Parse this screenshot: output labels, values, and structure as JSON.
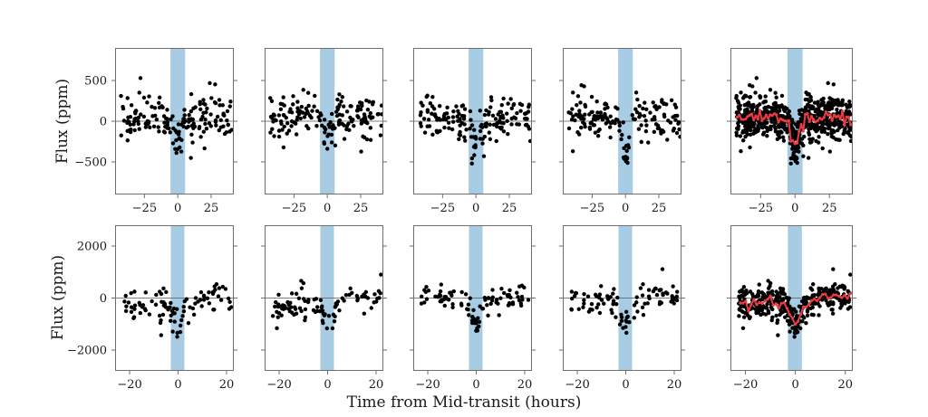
{
  "chart_data": {
    "type": "scatter",
    "title": "",
    "xlabel": "Time from Mid-transit (hours)",
    "ylabel": "Flux (ppm)",
    "layout": {
      "rows": 2,
      "cols": 5,
      "grid": false,
      "legend": "none",
      "note": "columns 1-4 are individual light-curve segments; column 5 is all points combined with a red running-mean curve; light blue vertical band marks the transit window around mid-transit"
    },
    "colors": {
      "point": "#000000",
      "red_curve": "#ee3b43",
      "band": "#a8cce4",
      "spine": "#6e6e6e",
      "zero_line": "#555555",
      "text": "#1a1a1a"
    },
    "rows": [
      {
        "ylim": [
          -900,
          900
        ],
        "yticks": [
          {
            "v": 500,
            "label": "500"
          },
          {
            "v": 0,
            "label": "0"
          },
          {
            "v": -500,
            "label": "−500"
          }
        ],
        "xlim": [
          -47,
          42
        ],
        "xticks": [
          {
            "v": -25,
            "label": "−25"
          },
          {
            "v": 0,
            "label": "0"
          },
          {
            "v": 25,
            "label": "25"
          }
        ],
        "band": {
          "x0": -5.5,
          "x1": 5.5
        },
        "bin_width": 1.5,
        "panels": [
          {
            "seed": 11,
            "n": 165,
            "x_range": [
              -43,
              41
            ],
            "base": 30,
            "trend": 0.8,
            "sigma": 128,
            "dip_depth": -260,
            "dip_sd": 3.5,
            "outliers": [
              [
                -28,
                530
              ],
              [
                24,
                468
              ],
              [
                28,
                452
              ],
              [
                -1,
                -390
              ]
            ]
          },
          {
            "seed": 22,
            "n": 170,
            "x_range": [
              -43,
              41
            ],
            "base": 55,
            "trend": -0.4,
            "sigma": 125,
            "dip_depth": -200,
            "dip_sd": 3.2,
            "outliers": [
              [
                -18,
                385
              ],
              [
                9,
                330
              ]
            ]
          },
          {
            "seed": 33,
            "n": 165,
            "x_range": [
              -43,
              41
            ],
            "base": 20,
            "trend": 0.3,
            "sigma": 125,
            "dip_depth": -280,
            "dip_sd": 3.2,
            "outliers": [
              [
                -3,
                -520
              ],
              [
                6,
                -430
              ],
              [
                -37,
                300
              ]
            ]
          },
          {
            "seed": 44,
            "n": 165,
            "x_range": [
              -43,
              41
            ],
            "base": 30,
            "trend": 0.0,
            "sigma": 125,
            "dip_depth": -380,
            "dip_sd": 3.0,
            "outliers": [
              [
                -33,
                442
              ],
              [
                -31,
                428
              ],
              [
                -1,
                -460
              ]
            ]
          },
          {
            "combined": true,
            "red_curve": true
          }
        ]
      },
      {
        "ylim": [
          -2800,
          2800
        ],
        "yticks": [
          {
            "v": 2000,
            "label": "2000"
          },
          {
            "v": 0,
            "label": "0"
          },
          {
            "v": -2000,
            "label": "−2000"
          }
        ],
        "xlim": [
          -26,
          23
        ],
        "xticks": [
          {
            "v": -20,
            "label": "−20"
          },
          {
            "v": 0,
            "label": "0"
          },
          {
            "v": 20,
            "label": "20"
          }
        ],
        "band": {
          "x0": -3.0,
          "x1": 2.6
        },
        "bin_width": 1.1,
        "panels": [
          {
            "seed": 55,
            "n": 95,
            "x_range": [
              -23,
              22
            ],
            "base": -150,
            "trend": 8,
            "sigma": 300,
            "dip_depth": -900,
            "dip_sd": 2.5,
            "outliers": [
              [
                -7,
                -1430
              ]
            ]
          },
          {
            "seed": 66,
            "n": 95,
            "x_range": [
              -23,
              22
            ],
            "base": -100,
            "trend": 12,
            "sigma": 260,
            "dip_depth": -600,
            "dip_sd": 2.5,
            "outliers": [
              [
                22,
                900
              ]
            ]
          },
          {
            "seed": 77,
            "n": 95,
            "x_range": [
              -23,
              22
            ],
            "base": 0,
            "trend": 2,
            "sigma": 260,
            "dip_depth": -800,
            "dip_sd": 2.3,
            "outliers": [
              [
                0.5,
                -1250
              ]
            ]
          },
          {
            "seed": 88,
            "n": 95,
            "x_range": [
              -23,
              22
            ],
            "base": -50,
            "trend": 4,
            "sigma": 280,
            "dip_depth": -950,
            "dip_sd": 2.5,
            "outliers": []
          },
          {
            "combined": true,
            "red_curve": true
          }
        ]
      }
    ]
  }
}
